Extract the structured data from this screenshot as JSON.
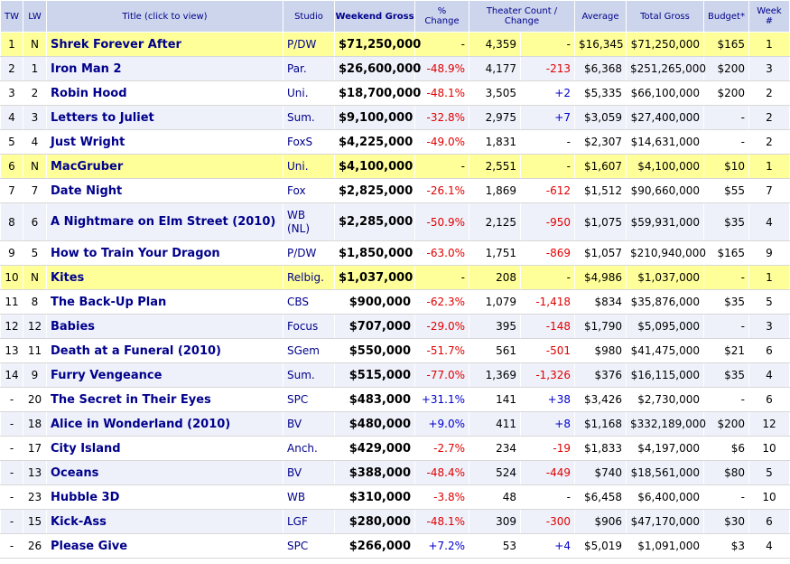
{
  "headers": {
    "tw": "TW",
    "lw": "LW",
    "title": "Title (click to view)",
    "studio": "Studio",
    "weekend": "Weekend Gross",
    "pct_line1": "%",
    "pct_line2": "Change",
    "theater_line1": "Theater Count /",
    "theater_line2": "Change",
    "average": "Average",
    "total": "Total Gross",
    "budget": "Budget*",
    "week_line1": "Week",
    "week_line2": "#"
  },
  "colors": {
    "header_bg": "#ccd5ec",
    "new_release_bg": "#ffff99",
    "stripe_bg": "#eef1fa",
    "negative": "#e00000",
    "positive": "#0000cc",
    "title_text": "#00008b"
  },
  "rows": [
    {
      "tw": "1",
      "lw": "N",
      "title": "Shrek Forever After",
      "studio": "P/DW",
      "weekend": "$71,250,000",
      "pct": "-",
      "theaters": "4,359",
      "tchange": "-",
      "average": "$16,345",
      "total": "$71,250,000",
      "budget": "$165",
      "week": "1",
      "new": true
    },
    {
      "tw": "2",
      "lw": "1",
      "title": "Iron Man 2",
      "studio": "Par.",
      "weekend": "$26,600,000",
      "pct": "-48.9%",
      "theaters": "4,177",
      "tchange": "-213",
      "average": "$6,368",
      "total": "$251,265,000",
      "budget": "$200",
      "week": "3",
      "new": false
    },
    {
      "tw": "3",
      "lw": "2",
      "title": "Robin Hood",
      "studio": "Uni.",
      "weekend": "$18,700,000",
      "pct": "-48.1%",
      "theaters": "3,505",
      "tchange": "+2",
      "average": "$5,335",
      "total": "$66,100,000",
      "budget": "$200",
      "week": "2",
      "new": false
    },
    {
      "tw": "4",
      "lw": "3",
      "title": "Letters to Juliet",
      "studio": "Sum.",
      "weekend": "$9,100,000",
      "pct": "-32.8%",
      "theaters": "2,975",
      "tchange": "+7",
      "average": "$3,059",
      "total": "$27,400,000",
      "budget": "-",
      "week": "2",
      "new": false
    },
    {
      "tw": "5",
      "lw": "4",
      "title": "Just Wright",
      "studio": "FoxS",
      "weekend": "$4,225,000",
      "pct": "-49.0%",
      "theaters": "1,831",
      "tchange": "-",
      "average": "$2,307",
      "total": "$14,631,000",
      "budget": "-",
      "week": "2",
      "new": false
    },
    {
      "tw": "6",
      "lw": "N",
      "title": "MacGruber",
      "studio": "Uni.",
      "weekend": "$4,100,000",
      "pct": "-",
      "theaters": "2,551",
      "tchange": "-",
      "average": "$1,607",
      "total": "$4,100,000",
      "budget": "$10",
      "week": "1",
      "new": true
    },
    {
      "tw": "7",
      "lw": "7",
      "title": "Date Night",
      "studio": "Fox",
      "weekend": "$2,825,000",
      "pct": "-26.1%",
      "theaters": "1,869",
      "tchange": "-612",
      "average": "$1,512",
      "total": "$90,660,000",
      "budget": "$55",
      "week": "7",
      "new": false
    },
    {
      "tw": "8",
      "lw": "6",
      "title": "A Nightmare on Elm Street (2010)",
      "studio": "WB (NL)",
      "weekend": "$2,285,000",
      "pct": "-50.9%",
      "theaters": "2,125",
      "tchange": "-950",
      "average": "$1,075",
      "total": "$59,931,000",
      "budget": "$35",
      "week": "4",
      "new": false
    },
    {
      "tw": "9",
      "lw": "5",
      "title": "How to Train Your Dragon",
      "studio": "P/DW",
      "weekend": "$1,850,000",
      "pct": "-63.0%",
      "theaters": "1,751",
      "tchange": "-869",
      "average": "$1,057",
      "total": "$210,940,000",
      "budget": "$165",
      "week": "9",
      "new": false
    },
    {
      "tw": "10",
      "lw": "N",
      "title": "Kites",
      "studio": "Relbig.",
      "weekend": "$1,037,000",
      "pct": "-",
      "theaters": "208",
      "tchange": "-",
      "average": "$4,986",
      "total": "$1,037,000",
      "budget": "-",
      "week": "1",
      "new": true
    },
    {
      "tw": "11",
      "lw": "8",
      "title": "The Back-Up Plan",
      "studio": "CBS",
      "weekend": "$900,000",
      "pct": "-62.3%",
      "theaters": "1,079",
      "tchange": "-1,418",
      "average": "$834",
      "total": "$35,876,000",
      "budget": "$35",
      "week": "5",
      "new": false
    },
    {
      "tw": "12",
      "lw": "12",
      "title": "Babies",
      "studio": "Focus",
      "weekend": "$707,000",
      "pct": "-29.0%",
      "theaters": "395",
      "tchange": "-148",
      "average": "$1,790",
      "total": "$5,095,000",
      "budget": "-",
      "week": "3",
      "new": false
    },
    {
      "tw": "13",
      "lw": "11",
      "title": "Death at a Funeral (2010)",
      "studio": "SGem",
      "weekend": "$550,000",
      "pct": "-51.7%",
      "theaters": "561",
      "tchange": "-501",
      "average": "$980",
      "total": "$41,475,000",
      "budget": "$21",
      "week": "6",
      "new": false
    },
    {
      "tw": "14",
      "lw": "9",
      "title": "Furry Vengeance",
      "studio": "Sum.",
      "weekend": "$515,000",
      "pct": "-77.0%",
      "theaters": "1,369",
      "tchange": "-1,326",
      "average": "$376",
      "total": "$16,115,000",
      "budget": "$35",
      "week": "4",
      "new": false
    },
    {
      "tw": "-",
      "lw": "20",
      "title": "The Secret in Their Eyes",
      "studio": "SPC",
      "weekend": "$483,000",
      "pct": "+31.1%",
      "theaters": "141",
      "tchange": "+38",
      "average": "$3,426",
      "total": "$2,730,000",
      "budget": "-",
      "week": "6",
      "new": false
    },
    {
      "tw": "-",
      "lw": "18",
      "title": "Alice in Wonderland (2010)",
      "studio": "BV",
      "weekend": "$480,000",
      "pct": "+9.0%",
      "theaters": "411",
      "tchange": "+8",
      "average": "$1,168",
      "total": "$332,189,000",
      "budget": "$200",
      "week": "12",
      "new": false
    },
    {
      "tw": "-",
      "lw": "17",
      "title": "City Island",
      "studio": "Anch.",
      "weekend": "$429,000",
      "pct": "-2.7%",
      "theaters": "234",
      "tchange": "-19",
      "average": "$1,833",
      "total": "$4,197,000",
      "budget": "$6",
      "week": "10",
      "new": false
    },
    {
      "tw": "-",
      "lw": "13",
      "title": "Oceans",
      "studio": "BV",
      "weekend": "$388,000",
      "pct": "-48.4%",
      "theaters": "524",
      "tchange": "-449",
      "average": "$740",
      "total": "$18,561,000",
      "budget": "$80",
      "week": "5",
      "new": false
    },
    {
      "tw": "-",
      "lw": "23",
      "title": "Hubble 3D",
      "studio": "WB",
      "weekend": "$310,000",
      "pct": "-3.8%",
      "theaters": "48",
      "tchange": "-",
      "average": "$6,458",
      "total": "$6,400,000",
      "budget": "-",
      "week": "10",
      "new": false
    },
    {
      "tw": "-",
      "lw": "15",
      "title": "Kick-Ass",
      "studio": "LGF",
      "weekend": "$280,000",
      "pct": "-48.1%",
      "theaters": "309",
      "tchange": "-300",
      "average": "$906",
      "total": "$47,170,000",
      "budget": "$30",
      "week": "6",
      "new": false
    },
    {
      "tw": "-",
      "lw": "26",
      "title": "Please Give",
      "studio": "SPC",
      "weekend": "$266,000",
      "pct": "+7.2%",
      "theaters": "53",
      "tchange": "+4",
      "average": "$5,019",
      "total": "$1,091,000",
      "budget": "$3",
      "week": "4",
      "new": false
    }
  ]
}
